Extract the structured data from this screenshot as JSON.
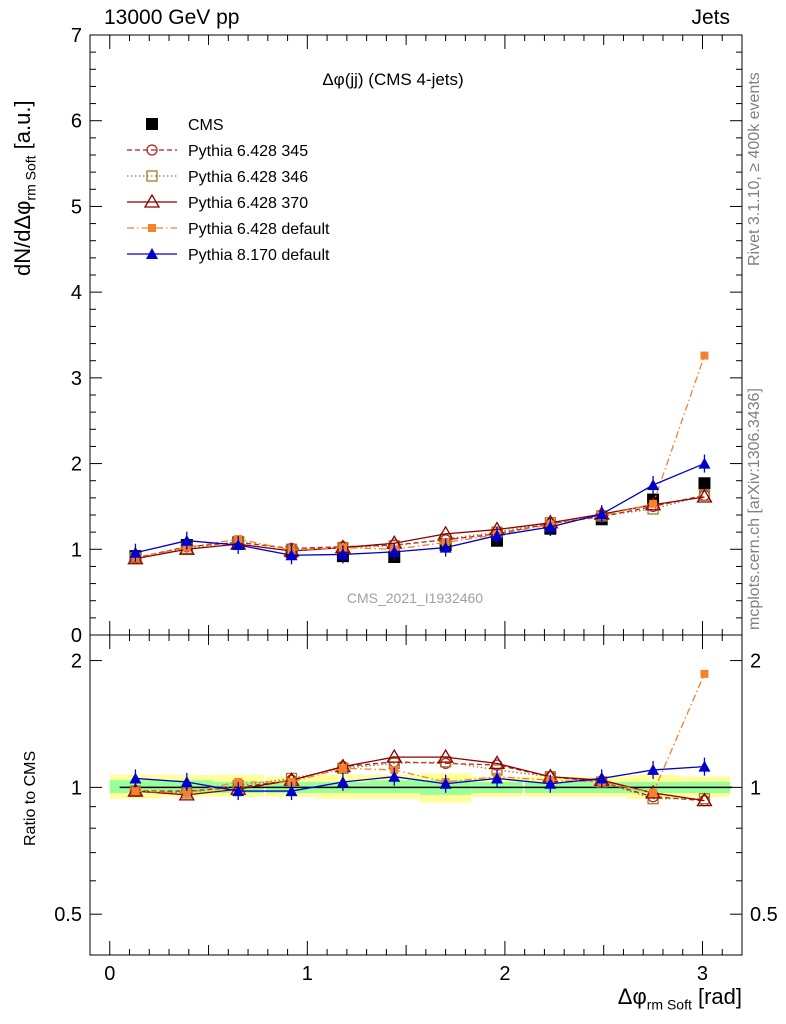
{
  "header": {
    "left": "13000 GeV pp",
    "right": "Jets"
  },
  "title": "Δφ(jj) (CMS 4-jets)",
  "side_text": {
    "rivet": "Rivet 3.1.10, ≥ 400k events",
    "mcplots": "mcplots.cern.ch [arXiv:1306.3436]"
  },
  "watermark": "CMS_2021_I1932460",
  "ylabel_main": {
    "main": "dN/dΔφ",
    "sub": "rm Soft",
    "unit": " [a.u.]"
  },
  "ylabel_ratio": "Ratio to CMS",
  "xlabel": {
    "main": "Δφ",
    "sub": "rm Soft",
    "unit": " [rad]"
  },
  "chart_data": [
    {
      "type": "scatter",
      "panel": "main",
      "x": [
        0.13,
        0.39,
        0.65,
        0.92,
        1.18,
        1.44,
        1.7,
        1.96,
        2.23,
        2.49,
        2.75,
        3.01
      ],
      "xlim": [
        -0.1,
        3.2
      ],
      "ylim": [
        0,
        7
      ],
      "yticks": [
        "0",
        "1",
        "2",
        "3",
        "4",
        "5",
        "6",
        "7"
      ],
      "xticks": [
        "0",
        "1",
        "2",
        "3"
      ],
      "series": [
        {
          "name": "CMS",
          "color": "#000000",
          "marker": "square-filled",
          "line": "none",
          "values": [
            0.92,
            1.05,
            1.08,
            0.97,
            0.92,
            0.91,
            1.05,
            1.1,
            1.24,
            1.35,
            1.58,
            1.77
          ]
        },
        {
          "name": "Pythia 6.428 345",
          "color": "#b22222",
          "marker": "circle-open",
          "line": "dashed",
          "values": [
            0.9,
            1.03,
            1.08,
            1.01,
            1.03,
            1.05,
            1.11,
            1.18,
            1.3,
            1.38,
            1.5,
            1.63
          ]
        },
        {
          "name": "Pythia 6.428 346",
          "color": "#a0792a",
          "marker": "square-open",
          "line": "dotted",
          "values": [
            0.9,
            1.01,
            1.09,
            1.0,
            1.02,
            1.04,
            1.12,
            1.2,
            1.31,
            1.39,
            1.47,
            1.63
          ]
        },
        {
          "name": "Pythia 6.428 370",
          "color": "#8b0000",
          "marker": "triangle-open",
          "line": "solid",
          "values": [
            0.89,
            1.0,
            1.06,
            0.98,
            1.02,
            1.07,
            1.18,
            1.23,
            1.31,
            1.41,
            1.52,
            1.61
          ]
        },
        {
          "name": "Pythia 6.428 default",
          "color": "#f5822a",
          "marker": "square-filled-small",
          "line": "dashdot",
          "values": [
            0.9,
            1.02,
            1.12,
            0.99,
            1.02,
            1.0,
            1.08,
            1.17,
            1.29,
            1.39,
            1.53,
            3.26
          ]
        },
        {
          "name": "Pythia 8.170 default",
          "color": "#0000cc",
          "marker": "triangle-filled",
          "line": "solid",
          "values": [
            0.96,
            1.1,
            1.05,
            0.93,
            0.94,
            0.97,
            1.02,
            1.16,
            1.26,
            1.41,
            1.75,
            2.0
          ]
        }
      ]
    },
    {
      "type": "scatter",
      "panel": "ratio",
      "x": [
        0.13,
        0.39,
        0.65,
        0.92,
        1.18,
        1.44,
        1.7,
        1.96,
        2.23,
        2.49,
        2.75,
        3.01
      ],
      "xlim": [
        -0.1,
        3.2
      ],
      "ylim": [
        0.4,
        2.3
      ],
      "ylog": true,
      "yticks": [
        "0.5",
        "1",
        "2"
      ],
      "xticks": [
        "0",
        "1",
        "2",
        "3"
      ],
      "band_yellow": [
        [
          0.94,
          1.07
        ],
        [
          0.95,
          1.07
        ],
        [
          0.95,
          1.07
        ],
        [
          0.95,
          1.06
        ],
        [
          0.94,
          1.07
        ],
        [
          0.94,
          1.07
        ],
        [
          0.92,
          1.08
        ],
        [
          0.95,
          1.06
        ],
        [
          0.95,
          1.06
        ],
        [
          0.95,
          1.06
        ],
        [
          0.94,
          1.07
        ],
        [
          0.95,
          1.06
        ]
      ],
      "band_green": [
        [
          0.97,
          1.04
        ],
        [
          0.97,
          1.04
        ],
        [
          0.97,
          1.03
        ],
        [
          0.97,
          1.03
        ],
        [
          0.97,
          1.03
        ],
        [
          0.97,
          1.04
        ],
        [
          0.96,
          1.04
        ],
        [
          0.97,
          1.03
        ],
        [
          0.97,
          1.03
        ],
        [
          0.97,
          1.03
        ],
        [
          0.97,
          1.03
        ],
        [
          0.97,
          1.03
        ]
      ],
      "series": [
        {
          "name": "Pythia 6.428 345",
          "color": "#b22222",
          "marker": "circle-open",
          "line": "dashed",
          "values": [
            0.98,
            0.98,
            1.0,
            1.04,
            1.12,
            1.15,
            1.14,
            1.13,
            1.06,
            1.03,
            0.95,
            0.93
          ]
        },
        {
          "name": "Pythia 6.428 346",
          "color": "#a0792a",
          "marker": "square-open",
          "line": "dotted",
          "values": [
            0.98,
            0.97,
            1.01,
            1.05,
            1.11,
            1.14,
            1.15,
            1.1,
            1.06,
            1.03,
            0.94,
            0.94
          ]
        },
        {
          "name": "Pythia 6.428 370",
          "color": "#8b0000",
          "marker": "triangle-open",
          "line": "solid",
          "values": [
            0.98,
            0.96,
            0.99,
            1.04,
            1.12,
            1.18,
            1.18,
            1.14,
            1.06,
            1.04,
            0.97,
            0.93
          ]
        },
        {
          "name": "Pythia 6.428 default",
          "color": "#f5822a",
          "marker": "square-filled-small",
          "line": "dashdot",
          "values": [
            0.98,
            0.97,
            1.03,
            1.03,
            1.11,
            1.1,
            1.03,
            1.06,
            1.04,
            1.03,
            0.97,
            1.86
          ]
        },
        {
          "name": "Pythia 8.170 default",
          "color": "#0000cc",
          "marker": "triangle-filled",
          "line": "solid",
          "values": [
            1.05,
            1.03,
            0.98,
            0.98,
            1.03,
            1.06,
            1.02,
            1.05,
            1.02,
            1.05,
            1.1,
            1.12
          ]
        }
      ]
    }
  ]
}
